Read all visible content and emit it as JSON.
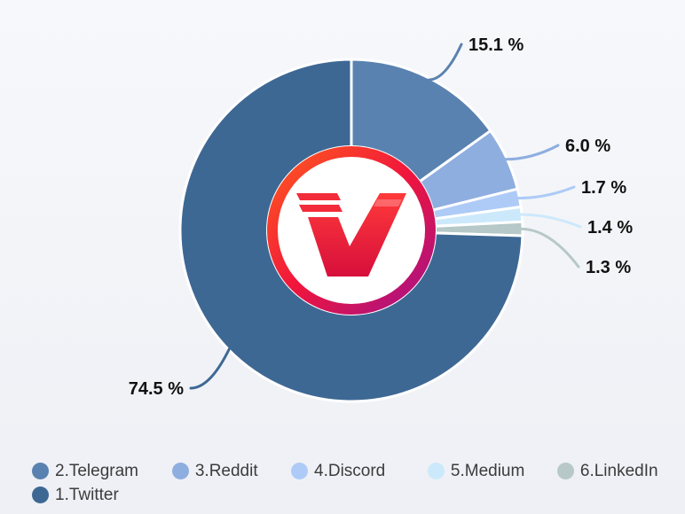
{
  "chart_data": {
    "type": "pie",
    "style": "donut",
    "categories": [
      "1.Twitter",
      "2.Telegram",
      "3.Reddit",
      "4.Discord",
      "5.Medium",
      "6.LinkedIn"
    ],
    "values": [
      74.5,
      15.1,
      6.0,
      1.7,
      1.4,
      1.3
    ],
    "labels": [
      "74.5 %",
      "15.1 %",
      "6.0 %",
      "1.7 %",
      "1.4 %",
      "1.3 %"
    ],
    "colors": [
      "#3e6894",
      "#5a82b0",
      "#8eaee0",
      "#aecbf7",
      "#cce9fb",
      "#b6c8c7"
    ],
    "legend": {
      "placement": "bottom",
      "rows": [
        [
          "2.Telegram",
          "3.Reddit",
          "4.Discord",
          "5.Medium",
          "6.LinkedIn"
        ],
        [
          "1.Twitter"
        ]
      ]
    },
    "center_logo": "red-v-logo-icon"
  }
}
